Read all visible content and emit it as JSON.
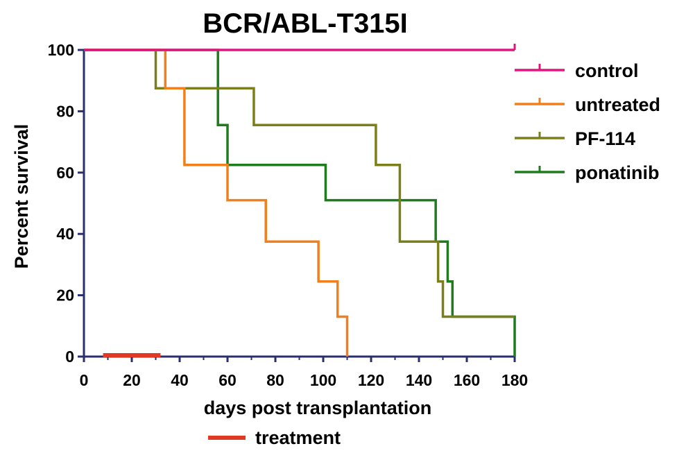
{
  "chart_data": {
    "type": "line",
    "subtype": "step",
    "title": "BCR/ABL-T315I",
    "xlabel": "days post transplantation",
    "ylabel": "Percent survival",
    "xlim": [
      0,
      180
    ],
    "ylim": [
      0,
      100
    ],
    "xticks": [
      0,
      20,
      40,
      60,
      80,
      100,
      120,
      140,
      160,
      180
    ],
    "yticks": [
      0,
      20,
      40,
      60,
      80,
      100
    ],
    "grid": false,
    "legend_position": "right",
    "series": [
      {
        "name": "control",
        "color": "#e0157f",
        "points": [
          [
            0,
            100
          ],
          [
            180,
            100
          ]
        ],
        "censor_marks": [
          [
            180,
            100
          ]
        ]
      },
      {
        "name": "untreated",
        "color": "#f07f1c",
        "points": [
          [
            0,
            100
          ],
          [
            34,
            100
          ],
          [
            34,
            87.5
          ],
          [
            42,
            87.5
          ],
          [
            42,
            62.5
          ],
          [
            60,
            62.5
          ],
          [
            60,
            51
          ],
          [
            76,
            51
          ],
          [
            76,
            37.5
          ],
          [
            98,
            37.5
          ],
          [
            98,
            24.5
          ],
          [
            106,
            24.5
          ],
          [
            106,
            13
          ],
          [
            110,
            13
          ],
          [
            110,
            0
          ]
        ],
        "censor_marks": []
      },
      {
        "name": "PF-114",
        "color": "#7a7f1a",
        "points": [
          [
            0,
            100
          ],
          [
            30,
            100
          ],
          [
            30,
            87.5
          ],
          [
            71,
            87.5
          ],
          [
            71,
            75.5
          ],
          [
            122,
            75.5
          ],
          [
            122,
            62.5
          ],
          [
            132,
            62.5
          ],
          [
            132,
            37.5
          ],
          [
            148,
            37.5
          ],
          [
            148,
            24.5
          ],
          [
            150,
            24.5
          ],
          [
            150,
            13
          ],
          [
            180,
            13
          ]
        ],
        "censor_marks": []
      },
      {
        "name": "ponatinib",
        "color": "#1e7b1e",
        "points": [
          [
            0,
            100
          ],
          [
            56,
            100
          ],
          [
            56,
            75.5
          ],
          [
            60,
            75.5
          ],
          [
            60,
            62.5
          ],
          [
            101,
            62.5
          ],
          [
            101,
            51
          ],
          [
            147,
            51
          ],
          [
            147,
            37.5
          ],
          [
            152,
            37.5
          ],
          [
            152,
            24.5
          ],
          [
            154,
            24.5
          ],
          [
            154,
            13
          ],
          [
            180,
            13
          ],
          [
            180,
            0
          ]
        ],
        "censor_marks": []
      }
    ],
    "treatment": {
      "label": "treatment",
      "color": "#e03a24",
      "x_range": [
        8,
        32
      ]
    }
  },
  "axis_color": "#2a2e6e"
}
